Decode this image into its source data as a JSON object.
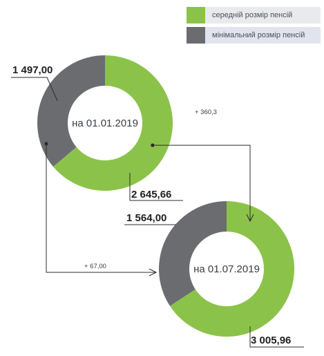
{
  "colors": {
    "average": "#8bc34a",
    "minimum": "#6b6c70",
    "line": "#2b2b2b"
  },
  "chart_data": {
    "type": "pie",
    "legend": {
      "position": "top-right",
      "entries": [
        "середній розмір пенсій",
        "мінімальний розмір пенсій"
      ]
    },
    "series": [
      {
        "name": "середній розмір пенсій",
        "values": [
          2645.66,
          3005.96
        ]
      },
      {
        "name": "мінімальний розмір пенсій",
        "values": [
          1497.0,
          1564.0
        ]
      }
    ],
    "categories": [
      "на 01.01.2019",
      "на 01.07.2019"
    ],
    "donuts": [
      {
        "label": "на 01.01.2019",
        "average": 2645.66,
        "average_label": "2 645,66",
        "minimum": 1497.0,
        "minimum_label": "1 497,00"
      },
      {
        "label": "на 01.07.2019",
        "average": 3005.96,
        "average_label": "3 005,96",
        "minimum": 1564.0,
        "minimum_label": "1 564,00"
      }
    ],
    "changes": {
      "average": "+ 360,3",
      "minimum": "+ 67,00"
    }
  }
}
